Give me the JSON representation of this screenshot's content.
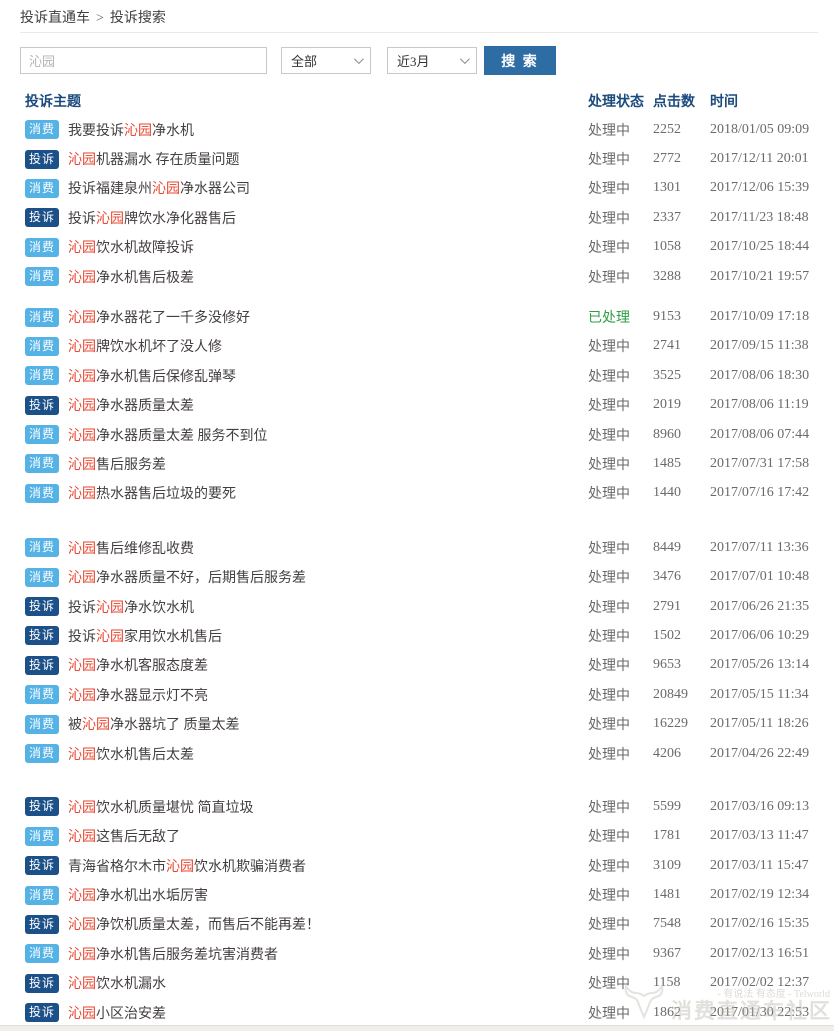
{
  "breadcrumb": {
    "root": "投诉直通车",
    "separator": ">",
    "current": "投诉搜索"
  },
  "search": {
    "keyword": "沁园",
    "category_filter": "全部",
    "time_filter": "近3月",
    "button_label": "搜 索"
  },
  "table": {
    "headers": {
      "subject": "投诉主题",
      "status": "处理状态",
      "clicks": "点击数",
      "time": "时间"
    },
    "groups": [
      [
        {
          "badge": "消费",
          "type": "consumer",
          "pre": "我要投诉",
          "brand": "沁园",
          "post": "净水机",
          "status": "处理中",
          "status_type": "processing",
          "clicks": "2252",
          "time": "2018/01/05 09:09"
        },
        {
          "badge": "投诉",
          "type": "complaint",
          "pre": "",
          "brand": "沁园",
          "post": "机器漏水 存在质量问题",
          "status": "处理中",
          "status_type": "processing",
          "clicks": "2772",
          "time": "2017/12/11 20:01"
        },
        {
          "badge": "消费",
          "type": "consumer",
          "pre": "投诉福建泉州",
          "brand": "沁园",
          "post": "净水器公司",
          "status": "处理中",
          "status_type": "processing",
          "clicks": "1301",
          "time": "2017/12/06 15:39"
        },
        {
          "badge": "投诉",
          "type": "complaint",
          "pre": "投诉",
          "brand": "沁园",
          "post": "牌饮水净化器售后",
          "status": "处理中",
          "status_type": "processing",
          "clicks": "2337",
          "time": "2017/11/23 18:48"
        },
        {
          "badge": "消费",
          "type": "consumer",
          "pre": "",
          "brand": "沁园",
          "post": "饮水机故障投诉",
          "status": "处理中",
          "status_type": "processing",
          "clicks": "1058",
          "time": "2017/10/25 18:44"
        },
        {
          "badge": "消费",
          "type": "consumer",
          "pre": "",
          "brand": "沁园",
          "post": "净水机售后极差",
          "status": "处理中",
          "status_type": "processing",
          "clicks": "3288",
          "time": "2017/10/21 19:57"
        }
      ],
      [
        {
          "badge": "消费",
          "type": "consumer",
          "pre": "",
          "brand": "沁园",
          "post": "净水器花了一千多没修好",
          "status": "已处理",
          "status_type": "resolved",
          "clicks": "9153",
          "time": "2017/10/09 17:18"
        },
        {
          "badge": "消费",
          "type": "consumer",
          "pre": "",
          "brand": "沁园",
          "post": "牌饮水机坏了没人修",
          "status": "处理中",
          "status_type": "processing",
          "clicks": "2741",
          "time": "2017/09/15 11:38"
        },
        {
          "badge": "消费",
          "type": "consumer",
          "pre": "",
          "brand": "沁园",
          "post": "净水机售后保修乱弹琴",
          "status": "处理中",
          "status_type": "processing",
          "clicks": "3525",
          "time": "2017/08/06 18:30"
        },
        {
          "badge": "投诉",
          "type": "complaint",
          "pre": "",
          "brand": "沁园",
          "post": "净水器质量太差",
          "status": "处理中",
          "status_type": "processing",
          "clicks": "2019",
          "time": "2017/08/06 11:19"
        },
        {
          "badge": "消费",
          "type": "consumer",
          "pre": "",
          "brand": "沁园",
          "post": "净水器质量太差 服务不到位",
          "status": "处理中",
          "status_type": "processing",
          "clicks": "8960",
          "time": "2017/08/06 07:44"
        },
        {
          "badge": "消费",
          "type": "consumer",
          "pre": "",
          "brand": "沁园",
          "post": "售后服务差",
          "status": "处理中",
          "status_type": "processing",
          "clicks": "1485",
          "time": "2017/07/31 17:58"
        },
        {
          "badge": "消费",
          "type": "consumer",
          "pre": "",
          "brand": "沁园",
          "post": "热水器售后垃圾的要死",
          "status": "处理中",
          "status_type": "processing",
          "clicks": "1440",
          "time": "2017/07/16 17:42"
        }
      ],
      [
        {
          "badge": "消费",
          "type": "consumer",
          "pre": "",
          "brand": "沁园",
          "post": "售后维修乱收费",
          "status": "处理中",
          "status_type": "processing",
          "clicks": "8449",
          "time": "2017/07/11 13:36"
        },
        {
          "badge": "消费",
          "type": "consumer",
          "pre": "",
          "brand": "沁园",
          "post": "净水器质量不好，后期售后服务差",
          "status": "处理中",
          "status_type": "processing",
          "clicks": "3476",
          "time": "2017/07/01 10:48"
        },
        {
          "badge": "投诉",
          "type": "complaint",
          "pre": "投诉",
          "brand": "沁园",
          "post": "净水饮水机",
          "status": "处理中",
          "status_type": "processing",
          "clicks": "2791",
          "time": "2017/06/26 21:35"
        },
        {
          "badge": "投诉",
          "type": "complaint",
          "pre": "投诉",
          "brand": "沁园",
          "post": "家用饮水机售后",
          "status": "处理中",
          "status_type": "processing",
          "clicks": "1502",
          "time": "2017/06/06 10:29"
        },
        {
          "badge": "投诉",
          "type": "complaint",
          "pre": "",
          "brand": "沁园",
          "post": "净水机客服态度差",
          "status": "处理中",
          "status_type": "processing",
          "clicks": "9653",
          "time": "2017/05/26 13:14"
        },
        {
          "badge": "消费",
          "type": "consumer",
          "pre": "",
          "brand": "沁园",
          "post": "净水器显示灯不亮",
          "status": "处理中",
          "status_type": "processing",
          "clicks": "20849",
          "time": "2017/05/15 11:34"
        },
        {
          "badge": "消费",
          "type": "consumer",
          "pre": "被",
          "brand": "沁园",
          "post": "净水器坑了 质量太差",
          "status": "处理中",
          "status_type": "processing",
          "clicks": "16229",
          "time": "2017/05/11 18:26"
        },
        {
          "badge": "消费",
          "type": "consumer",
          "pre": "",
          "brand": "沁园",
          "post": "饮水机售后太差",
          "status": "处理中",
          "status_type": "processing",
          "clicks": "4206",
          "time": "2017/04/26 22:49"
        }
      ],
      [
        {
          "badge": "投诉",
          "type": "complaint",
          "pre": "",
          "brand": "沁园",
          "post": "饮水机质量堪忧 简直垃圾",
          "status": "处理中",
          "status_type": "processing",
          "clicks": "5599",
          "time": "2017/03/16 09:13"
        },
        {
          "badge": "消费",
          "type": "consumer",
          "pre": "",
          "brand": "沁园",
          "post": "这售后无敌了",
          "status": "处理中",
          "status_type": "processing",
          "clicks": "1781",
          "time": "2017/03/13 11:47"
        },
        {
          "badge": "投诉",
          "type": "complaint",
          "pre": "青海省格尔木市",
          "brand": "沁园",
          "post": "饮水机欺骗消费者",
          "status": "处理中",
          "status_type": "processing",
          "clicks": "3109",
          "time": "2017/03/11 15:47"
        },
        {
          "badge": "消费",
          "type": "consumer",
          "pre": "",
          "brand": "沁园",
          "post": "净水机出水垢厉害",
          "status": "处理中",
          "status_type": "processing",
          "clicks": "1481",
          "time": "2017/02/19 12:34"
        },
        {
          "badge": "投诉",
          "type": "complaint",
          "pre": "",
          "brand": "沁园",
          "post": "净饮机质量太差，而售后不能再差！",
          "status": "处理中",
          "status_type": "processing",
          "clicks": "7548",
          "time": "2017/02/16 15:35"
        },
        {
          "badge": "消费",
          "type": "consumer",
          "pre": "",
          "brand": "沁园",
          "post": "净水机售后服务差坑害消费者",
          "status": "处理中",
          "status_type": "processing",
          "clicks": "9367",
          "time": "2017/02/13 16:51"
        },
        {
          "badge": "投诉",
          "type": "complaint",
          "pre": "",
          "brand": "沁园",
          "post": "饮水机漏水",
          "status": "处理中",
          "status_type": "processing",
          "clicks": "1158",
          "time": "2017/02/02 12:37"
        },
        {
          "badge": "投诉",
          "type": "complaint",
          "pre": "",
          "brand": "沁园",
          "post": "小区治安差",
          "status": "处理中",
          "status_type": "processing",
          "clicks": "1862",
          "time": "2017/01/30 22:53"
        }
      ]
    ]
  },
  "watermark": {
    "tagline": "- 有说法 有态度 - Telworld",
    "site_text": "消费直通车社区",
    "logo": "ox-head-icon"
  },
  "colors": {
    "badge_consumer": "#55b2e5",
    "badge_complaint": "#1c5088",
    "brand_highlight": "#e8432e",
    "status_processing": "#6a6a6a",
    "status_resolved": "#2f9e44",
    "header_text": "#1b4a7e",
    "search_button": "#2e6da4"
  }
}
